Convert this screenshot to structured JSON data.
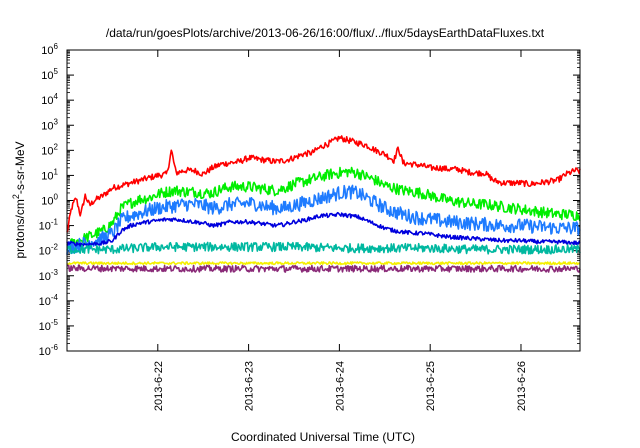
{
  "chart_data": {
    "type": "line",
    "title": "/data/run/goesPlots/archive/2013-06-26/16:00/flux/../flux/5daysEarthDataFluxes.txt",
    "xlabel": "Coordinated Universal Time (UTC)",
    "ylabel": {
      "base": "protons/cm",
      "sup": "2",
      "rest": "-s-sr-MeV"
    },
    "yscale": "log",
    "ylim_exp": [
      -6,
      6
    ],
    "xlim_days": [
      -1.0,
      4.65
    ],
    "x_ticks": [
      {
        "label": "2013-6-22",
        "day": 0
      },
      {
        "label": "2013-6-23",
        "day": 1
      },
      {
        "label": "2013-6-24",
        "day": 2
      },
      {
        "label": "2013-6-25",
        "day": 3
      },
      {
        "label": "2013-6-26",
        "day": 4
      }
    ],
    "y_ticks": [
      {
        "base": "10",
        "exp": "-6"
      },
      {
        "base": "10",
        "exp": "-5"
      },
      {
        "base": "10",
        "exp": "-4"
      },
      {
        "base": "10",
        "exp": "-3"
      },
      {
        "base": "10",
        "exp": "-2"
      },
      {
        "base": "10",
        "exp": "-1"
      },
      {
        "base": "10",
        "exp": "0"
      },
      {
        "base": "10",
        "exp": "1"
      },
      {
        "base": "10",
        "exp": "2"
      },
      {
        "base": "10",
        "exp": "3"
      },
      {
        "base": "10",
        "exp": "4"
      },
      {
        "base": "10",
        "exp": "5"
      },
      {
        "base": "10",
        "exp": "6"
      }
    ],
    "grid": false,
    "series": [
      {
        "color": "#ff0000",
        "noise": 0.12,
        "points": [
          [
            -1.0,
            -1.3
          ],
          [
            -0.95,
            -0.3
          ],
          [
            -0.9,
            0.1
          ],
          [
            -0.85,
            -0.6
          ],
          [
            -0.8,
            0.2
          ],
          [
            -0.75,
            -0.2
          ],
          [
            -0.7,
            0.0
          ],
          [
            -0.6,
            0.2
          ],
          [
            -0.5,
            0.5
          ],
          [
            -0.4,
            0.6
          ],
          [
            -0.3,
            0.7
          ],
          [
            -0.2,
            0.8
          ],
          [
            -0.1,
            0.9
          ],
          [
            0.0,
            1.0
          ],
          [
            0.1,
            1.05
          ],
          [
            0.15,
            2.0
          ],
          [
            0.2,
            1.1
          ],
          [
            0.3,
            1.2
          ],
          [
            0.4,
            1.2
          ],
          [
            0.5,
            1.05
          ],
          [
            0.6,
            1.3
          ],
          [
            0.7,
            1.45
          ],
          [
            0.8,
            1.5
          ],
          [
            0.9,
            1.55
          ],
          [
            1.0,
            1.7
          ],
          [
            1.1,
            1.65
          ],
          [
            1.2,
            1.6
          ],
          [
            1.3,
            1.55
          ],
          [
            1.4,
            1.6
          ],
          [
            1.5,
            1.7
          ],
          [
            1.6,
            1.85
          ],
          [
            1.7,
            1.9
          ],
          [
            1.8,
            2.15
          ],
          [
            1.9,
            2.3
          ],
          [
            2.0,
            2.5
          ],
          [
            2.1,
            2.4
          ],
          [
            2.2,
            2.3
          ],
          [
            2.3,
            2.2
          ],
          [
            2.4,
            2.0
          ],
          [
            2.5,
            1.85
          ],
          [
            2.6,
            1.6
          ],
          [
            2.65,
            2.1
          ],
          [
            2.7,
            1.5
          ],
          [
            2.8,
            1.45
          ],
          [
            2.9,
            1.4
          ],
          [
            3.0,
            1.3
          ],
          [
            3.1,
            1.3
          ],
          [
            3.2,
            1.25
          ],
          [
            3.3,
            1.25
          ],
          [
            3.4,
            1.15
          ],
          [
            3.5,
            1.1
          ],
          [
            3.6,
            1.1
          ],
          [
            3.7,
            0.8
          ],
          [
            3.8,
            0.7
          ],
          [
            3.9,
            0.7
          ],
          [
            4.0,
            0.7
          ],
          [
            4.1,
            0.65
          ],
          [
            4.2,
            0.7
          ],
          [
            4.3,
            0.75
          ],
          [
            4.4,
            0.8
          ],
          [
            4.5,
            1.05
          ],
          [
            4.6,
            1.2
          ],
          [
            4.65,
            1.15
          ]
        ]
      },
      {
        "color": "#00ee00",
        "noise": 0.22,
        "points": [
          [
            -1.0,
            -1.8
          ],
          [
            -0.8,
            -1.5
          ],
          [
            -0.6,
            -1.2
          ],
          [
            -0.5,
            -0.9
          ],
          [
            -0.4,
            -0.3
          ],
          [
            -0.3,
            -0.1
          ],
          [
            -0.2,
            0.05
          ],
          [
            -0.1,
            0.1
          ],
          [
            0.0,
            0.25
          ],
          [
            0.1,
            0.35
          ],
          [
            0.2,
            0.4
          ],
          [
            0.3,
            0.35
          ],
          [
            0.4,
            0.35
          ],
          [
            0.5,
            0.3
          ],
          [
            0.6,
            0.3
          ],
          [
            0.7,
            0.45
          ],
          [
            0.8,
            0.55
          ],
          [
            0.9,
            0.55
          ],
          [
            1.0,
            0.55
          ],
          [
            1.1,
            0.5
          ],
          [
            1.2,
            0.45
          ],
          [
            1.3,
            0.4
          ],
          [
            1.4,
            0.5
          ],
          [
            1.5,
            0.65
          ],
          [
            1.6,
            0.75
          ],
          [
            1.7,
            0.85
          ],
          [
            1.8,
            0.95
          ],
          [
            1.9,
            1.05
          ],
          [
            2.0,
            1.1
          ],
          [
            2.1,
            1.15
          ],
          [
            2.2,
            1.1
          ],
          [
            2.3,
            0.95
          ],
          [
            2.4,
            0.8
          ],
          [
            2.5,
            0.6
          ],
          [
            2.6,
            0.5
          ],
          [
            2.7,
            0.4
          ],
          [
            2.8,
            0.35
          ],
          [
            2.9,
            0.3
          ],
          [
            3.0,
            0.2
          ],
          [
            3.1,
            0.1
          ],
          [
            3.2,
            0.0
          ],
          [
            3.3,
            -0.05
          ],
          [
            3.4,
            -0.1
          ],
          [
            3.5,
            -0.15
          ],
          [
            3.6,
            -0.15
          ],
          [
            3.7,
            -0.2
          ],
          [
            3.8,
            -0.25
          ],
          [
            3.9,
            -0.3
          ],
          [
            4.0,
            -0.35
          ],
          [
            4.1,
            -0.4
          ],
          [
            4.2,
            -0.45
          ],
          [
            4.3,
            -0.5
          ],
          [
            4.4,
            -0.55
          ],
          [
            4.5,
            -0.55
          ],
          [
            4.65,
            -0.6
          ]
        ]
      },
      {
        "color": "#1e7bff",
        "noise": 0.28,
        "points": [
          [
            -1.0,
            -1.9
          ],
          [
            -0.8,
            -1.7
          ],
          [
            -0.6,
            -1.5
          ],
          [
            -0.5,
            -1.3
          ],
          [
            -0.4,
            -0.8
          ],
          [
            -0.3,
            -0.6
          ],
          [
            -0.2,
            -0.5
          ],
          [
            -0.1,
            -0.4
          ],
          [
            0.0,
            -0.3
          ],
          [
            0.1,
            -0.25
          ],
          [
            0.2,
            -0.2
          ],
          [
            0.3,
            -0.15
          ],
          [
            0.4,
            -0.15
          ],
          [
            0.5,
            -0.2
          ],
          [
            0.6,
            -0.3
          ],
          [
            0.7,
            -0.25
          ],
          [
            0.8,
            -0.15
          ],
          [
            0.9,
            -0.15
          ],
          [
            1.0,
            -0.1
          ],
          [
            1.1,
            -0.15
          ],
          [
            1.2,
            -0.25
          ],
          [
            1.3,
            -0.3
          ],
          [
            1.4,
            -0.3
          ],
          [
            1.5,
            -0.2
          ],
          [
            1.6,
            -0.1
          ],
          [
            1.7,
            0.0
          ],
          [
            1.8,
            0.1
          ],
          [
            1.9,
            0.2
          ],
          [
            2.0,
            0.3
          ],
          [
            2.1,
            0.35
          ],
          [
            2.2,
            0.3
          ],
          [
            2.3,
            0.1
          ],
          [
            2.4,
            -0.1
          ],
          [
            2.5,
            -0.3
          ],
          [
            2.6,
            -0.45
          ],
          [
            2.7,
            -0.55
          ],
          [
            2.8,
            -0.65
          ],
          [
            2.9,
            -0.7
          ],
          [
            3.0,
            -0.75
          ],
          [
            3.2,
            -0.85
          ],
          [
            3.4,
            -0.9
          ],
          [
            3.6,
            -0.95
          ],
          [
            3.8,
            -1.0
          ],
          [
            4.0,
            -1.0
          ],
          [
            4.2,
            -1.05
          ],
          [
            4.4,
            -1.1
          ],
          [
            4.65,
            -1.1
          ]
        ]
      },
      {
        "color": "#0000dd",
        "noise": 0.08,
        "points": [
          [
            -1.0,
            -1.7
          ],
          [
            -0.8,
            -1.75
          ],
          [
            -0.6,
            -1.7
          ],
          [
            -0.5,
            -1.6
          ],
          [
            -0.4,
            -1.2
          ],
          [
            -0.3,
            -1.0
          ],
          [
            -0.2,
            -0.9
          ],
          [
            -0.1,
            -0.85
          ],
          [
            0.0,
            -0.8
          ],
          [
            0.1,
            -0.75
          ],
          [
            0.2,
            -0.75
          ],
          [
            0.3,
            -0.8
          ],
          [
            0.4,
            -0.85
          ],
          [
            0.5,
            -0.9
          ],
          [
            0.6,
            -1.0
          ],
          [
            0.7,
            -0.95
          ],
          [
            0.8,
            -0.85
          ],
          [
            0.9,
            -0.85
          ],
          [
            1.0,
            -0.85
          ],
          [
            1.1,
            -0.9
          ],
          [
            1.2,
            -0.95
          ],
          [
            1.3,
            -1.0
          ],
          [
            1.4,
            -0.95
          ],
          [
            1.5,
            -0.85
          ],
          [
            1.6,
            -0.8
          ],
          [
            1.7,
            -0.7
          ],
          [
            1.8,
            -0.6
          ],
          [
            1.9,
            -0.6
          ],
          [
            2.0,
            -0.55
          ],
          [
            2.1,
            -0.6
          ],
          [
            2.2,
            -0.65
          ],
          [
            2.3,
            -0.8
          ],
          [
            2.4,
            -0.95
          ],
          [
            2.5,
            -1.1
          ],
          [
            2.6,
            -1.2
          ],
          [
            2.7,
            -1.25
          ],
          [
            2.8,
            -1.3
          ],
          [
            2.9,
            -1.3
          ],
          [
            3.0,
            -1.35
          ],
          [
            3.2,
            -1.45
          ],
          [
            3.4,
            -1.5
          ],
          [
            3.6,
            -1.55
          ],
          [
            3.8,
            -1.6
          ],
          [
            4.0,
            -1.6
          ],
          [
            4.2,
            -1.65
          ],
          [
            4.4,
            -1.65
          ],
          [
            4.65,
            -1.7
          ]
        ]
      },
      {
        "color": "#00b8a0",
        "noise": 0.18,
        "points": [
          [
            -1.0,
            -1.95
          ],
          [
            -0.5,
            -1.95
          ],
          [
            0.0,
            -1.85
          ],
          [
            0.5,
            -1.85
          ],
          [
            1.0,
            -1.85
          ],
          [
            1.5,
            -1.85
          ],
          [
            2.0,
            -1.9
          ],
          [
            2.5,
            -1.9
          ],
          [
            3.0,
            -1.9
          ],
          [
            3.5,
            -1.95
          ],
          [
            4.0,
            -1.95
          ],
          [
            4.65,
            -1.95
          ]
        ]
      },
      {
        "color": "#f4f000",
        "noise": 0.05,
        "points": [
          [
            -1.0,
            -2.5
          ],
          [
            0.0,
            -2.5
          ],
          [
            1.0,
            -2.5
          ],
          [
            2.0,
            -2.5
          ],
          [
            3.0,
            -2.5
          ],
          [
            4.0,
            -2.5
          ],
          [
            4.65,
            -2.5
          ]
        ]
      },
      {
        "color": "#8a2a78",
        "noise": 0.13,
        "points": [
          [
            -1.0,
            -2.7
          ],
          [
            0.0,
            -2.72
          ],
          [
            1.0,
            -2.72
          ],
          [
            2.0,
            -2.72
          ],
          [
            3.0,
            -2.72
          ],
          [
            4.0,
            -2.72
          ],
          [
            4.65,
            -2.72
          ]
        ]
      }
    ]
  }
}
